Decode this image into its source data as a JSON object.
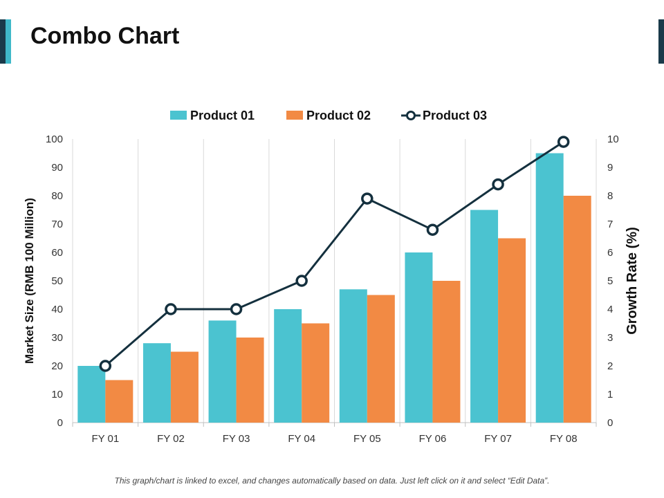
{
  "page": {
    "title": "Combo Chart",
    "footer": "This graph/chart is linked to excel, and changes automatically based on data. Just left click on it and select “Edit Data”."
  },
  "colors": {
    "accent_dark": "#1a3a4a",
    "accent_teal": "#3fb8c9",
    "product01": "#4bc3d0",
    "product02": "#f28a44",
    "product03": "#14303e"
  },
  "chart_data": {
    "type": "bar+line",
    "title": "Combo Chart",
    "categories": [
      "FY 01",
      "FY 02",
      "FY 03",
      "FY 04",
      "FY 05",
      "FY 06",
      "FY 07",
      "FY 08"
    ],
    "series": [
      {
        "name": "Product 01",
        "type": "bar",
        "axis": "left",
        "values": [
          20,
          28,
          36,
          40,
          47,
          60,
          75,
          95
        ]
      },
      {
        "name": "Product 02",
        "type": "bar",
        "axis": "left",
        "values": [
          15,
          25,
          30,
          35,
          45,
          50,
          65,
          80
        ]
      },
      {
        "name": "Product 03",
        "type": "line",
        "axis": "right",
        "values": [
          2,
          4,
          4,
          5,
          7.9,
          6.8,
          8.4,
          9.9
        ]
      }
    ],
    "ylabel": "Market Size (RMB 100 Million)",
    "y2label": "Growth Rate (%)",
    "ylim": [
      0,
      100
    ],
    "y2lim": [
      0,
      10
    ],
    "yticks": [
      "0",
      "10",
      "20",
      "30",
      "40",
      "50",
      "60",
      "70",
      "80",
      "90",
      "100"
    ],
    "y2ticks": [
      "0",
      "1",
      "2",
      "3",
      "4",
      "5",
      "6",
      "7",
      "8",
      "9",
      "10"
    ],
    "legend_position": "top-center"
  }
}
